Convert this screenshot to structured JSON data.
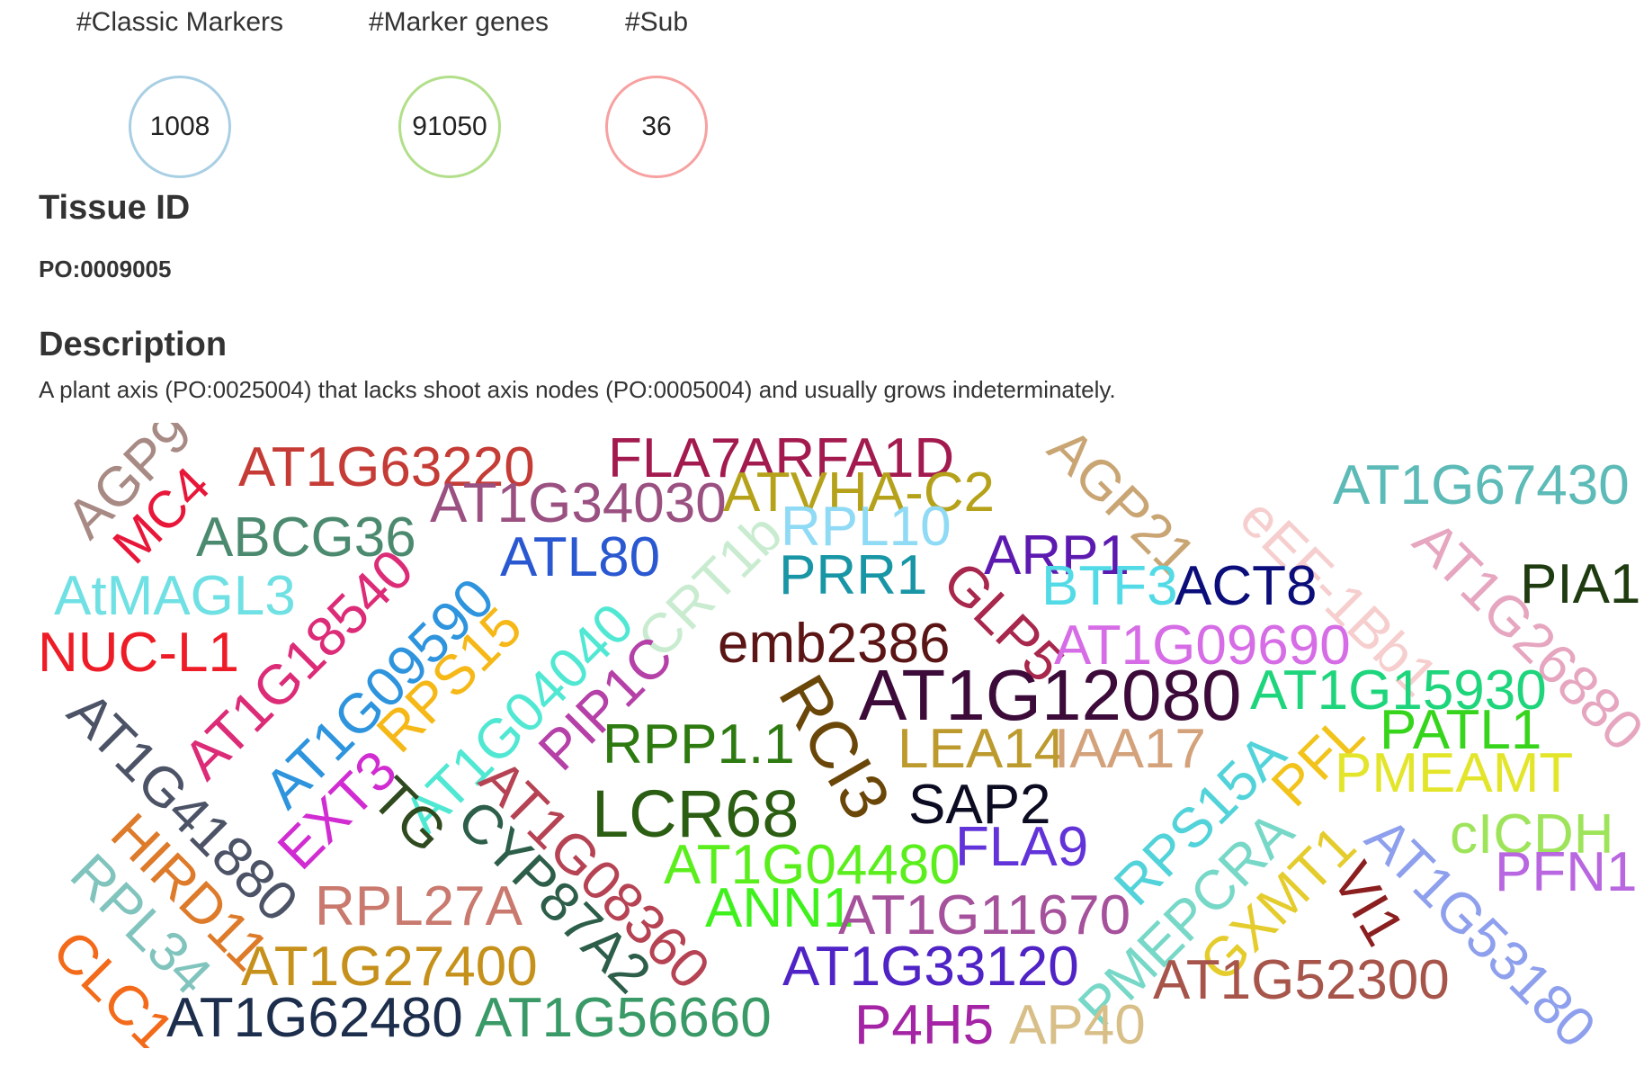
{
  "stats": [
    {
      "label": "#Classic Markers",
      "value": "1008",
      "color": "#a9cfe4"
    },
    {
      "label": "#Marker genes",
      "value": "91050",
      "color": "#b2df8a"
    },
    {
      "label": "#Sub",
      "value": "36",
      "color": "#f7a1a1"
    }
  ],
  "tissue": {
    "heading": "Tissue ID",
    "value": "PO:0009005"
  },
  "description": {
    "heading": "Description",
    "text": "A plant axis (PO:0025004) that lacks shoot axis nodes (PO:0005004) and usually grows indeterminately."
  },
  "wordcloud": [
    {
      "text": "AGP9",
      "color": "#a88a85"
    },
    {
      "text": "MC4",
      "color": "#e8173a"
    },
    {
      "text": "AT1G63220",
      "color": "#c53b35"
    },
    {
      "text": "FLA7",
      "color": "#a31a4f"
    },
    {
      "text": "ARFA1D",
      "color": "#a31a4f"
    },
    {
      "text": "AGP21",
      "color": "#c9a574"
    },
    {
      "text": "AT1G67430",
      "color": "#5cbab7"
    },
    {
      "text": "ABCG36",
      "color": "#4c8a70"
    },
    {
      "text": "AT1G34030",
      "color": "#9a5080"
    },
    {
      "text": "ATVHA-C2",
      "color": "#b5a21a"
    },
    {
      "text": "eEF-1Bb1",
      "color": "#f6cece"
    },
    {
      "text": "AT1G26880",
      "color": "#e6a6c0"
    },
    {
      "text": "AtMAGL3",
      "color": "#6fe0e3"
    },
    {
      "text": "ATL80",
      "color": "#2a58d1"
    },
    {
      "text": "CRT1b",
      "color": "#c9ecd0"
    },
    {
      "text": "RPL10",
      "color": "#8fdaf5"
    },
    {
      "text": "ARP1",
      "color": "#5d1ab0"
    },
    {
      "text": "PIA1",
      "color": "#1f3b10"
    },
    {
      "text": "NUC-L1",
      "color": "#ee1c26"
    },
    {
      "text": "AT1G18540",
      "color": "#dc2b77"
    },
    {
      "text": "AT1G09590",
      "color": "#2d94dd"
    },
    {
      "text": "PRR1",
      "color": "#1996a6"
    },
    {
      "text": "GLP5",
      "color": "#a8274c"
    },
    {
      "text": "BTF3",
      "color": "#52dbe6"
    },
    {
      "text": "ACT8",
      "color": "#0b0e7a"
    },
    {
      "text": "RPS15",
      "color": "#f5b817"
    },
    {
      "text": "AT1G04040",
      "color": "#51e8d3"
    },
    {
      "text": "PIP1C",
      "color": "#b541a8"
    },
    {
      "text": "emb2386",
      "color": "#5b1515"
    },
    {
      "text": "AT1G09690",
      "color": "#d66ce6"
    },
    {
      "text": "AT1G41880",
      "color": "#4c5366"
    },
    {
      "text": "RCI3",
      "color": "#6a4708"
    },
    {
      "text": "AT1G12080",
      "color": "#3d0b3a"
    },
    {
      "text": "AT1G15930",
      "color": "#1ed57c"
    },
    {
      "text": "RPP1.1",
      "color": "#2d7a10"
    },
    {
      "text": "LEA14",
      "color": "#bd9a2e"
    },
    {
      "text": "IAA17",
      "color": "#d3a27b"
    },
    {
      "text": "PATL1",
      "color": "#36d51c"
    },
    {
      "text": "EXT3",
      "color": "#d12cd2"
    },
    {
      "text": "TG",
      "color": "#2f4a1e"
    },
    {
      "text": "AT1G08360",
      "color": "#b64353"
    },
    {
      "text": "LCR68",
      "color": "#2b5e12"
    },
    {
      "text": "SAP2",
      "color": "#0b0b22"
    },
    {
      "text": "RPS15A",
      "color": "#52d3d9"
    },
    {
      "text": "PFL",
      "color": "#f2c31b"
    },
    {
      "text": "PMEAMT",
      "color": "#e3e52b"
    },
    {
      "text": "HIRD11",
      "color": "#dd7b2a"
    },
    {
      "text": "CYP87A2",
      "color": "#2c5e4a"
    },
    {
      "text": "AT1G04480",
      "color": "#5bee1d"
    },
    {
      "text": "FLA9",
      "color": "#6233d8"
    },
    {
      "text": "PMEPCRA",
      "color": "#77d8c7"
    },
    {
      "text": "AT1G53180",
      "color": "#8ea0ed"
    },
    {
      "text": "cICDH",
      "color": "#9ee45b"
    },
    {
      "text": "RPL34",
      "color": "#80c4bd"
    },
    {
      "text": "RPL27A",
      "color": "#c9796d"
    },
    {
      "text": "ANN1",
      "color": "#3ef11c"
    },
    {
      "text": "AT1G11670",
      "color": "#a5519b"
    },
    {
      "text": "GXMT1",
      "color": "#e5cc2d"
    },
    {
      "text": "VI1",
      "color": "#8b1e1e"
    },
    {
      "text": "PFN1",
      "color": "#b967e0"
    },
    {
      "text": "CLC1",
      "color": "#f36a1a"
    },
    {
      "text": "AT1G27400",
      "color": "#c6911b"
    },
    {
      "text": "AT1G33120",
      "color": "#4f23c5"
    },
    {
      "text": "AT1G52300",
      "color": "#a7554b"
    },
    {
      "text": "AT1G62480",
      "color": "#1d2e4d"
    },
    {
      "text": "AT1G56660",
      "color": "#3a9a67"
    },
    {
      "text": "P4H5",
      "color": "#a424a5"
    },
    {
      "text": "AP40",
      "color": "#d8bf88"
    }
  ]
}
